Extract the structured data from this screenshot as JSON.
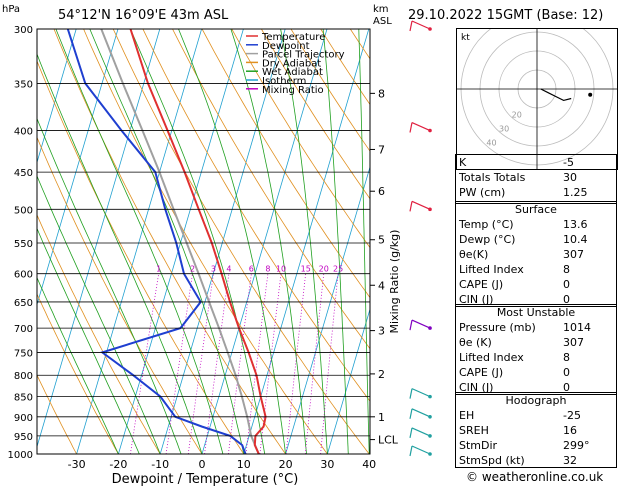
{
  "header": {
    "coords": "54°12'N 16°09'E 43m ASL",
    "datetime": "29.10.2022 15GMT (Base: 12)",
    "y_unit": "hPa",
    "km_label": "km",
    "asl_label": "ASL"
  },
  "chart_data": {
    "type": "skew-t",
    "xlabel": "Dewpoint / Temperature (°C)",
    "ylabel_right": "Mixing Ratio (g/kg)",
    "xlim": [
      -35,
      40
    ],
    "x_ticks": [
      -30,
      -20,
      -10,
      0,
      10,
      20,
      30,
      40
    ],
    "pressure_levels": [
      300,
      350,
      400,
      450,
      500,
      550,
      600,
      650,
      700,
      750,
      800,
      850,
      900,
      950,
      1000
    ],
    "km_ticks": [
      {
        "km": "8",
        "p": 360
      },
      {
        "km": "7",
        "p": 422
      },
      {
        "km": "6",
        "p": 475
      },
      {
        "km": "5",
        "p": 545
      },
      {
        "km": "4",
        "p": 620
      },
      {
        "km": "3",
        "p": 705
      },
      {
        "km": "2",
        "p": 797
      },
      {
        "km": "1",
        "p": 900
      },
      {
        "km": "LCL",
        "p": 960
      }
    ],
    "mixing_ratio_labels": [
      "1",
      "2",
      "3",
      "4",
      "6",
      "8",
      "10",
      "15",
      "20",
      "25"
    ],
    "mixing_ratio_values": [
      1,
      2,
      3,
      4,
      6,
      8,
      10,
      15,
      20,
      25
    ],
    "legend": [
      {
        "name": "Temperature",
        "color": "#e03030"
      },
      {
        "name": "Dewpoint",
        "color": "#1f3fd0"
      },
      {
        "name": "Parcel Trajectory",
        "color": "#a0a0a0"
      },
      {
        "name": "Dry Adiabat",
        "color": "#e09020"
      },
      {
        "name": "Wet Adiabat",
        "color": "#20a020"
      },
      {
        "name": "Isotherm",
        "color": "#20a0d0"
      },
      {
        "name": "Mixing Ratio",
        "color": "#c000c0"
      }
    ],
    "temperature": {
      "p": [
        1000,
        975,
        950,
        925,
        900,
        850,
        800,
        750,
        700,
        650,
        600,
        550,
        500,
        450,
        400,
        350,
        300
      ],
      "t": [
        13.6,
        12.0,
        11.5,
        12.8,
        12.6,
        10.0,
        7.5,
        4.0,
        0.0,
        -4.0,
        -8.0,
        -12.5,
        -18.0,
        -24.0,
        -31.0,
        -39.0,
        -47.0
      ]
    },
    "dewpoint": {
      "p": [
        1000,
        975,
        950,
        925,
        900,
        850,
        800,
        750,
        700,
        650,
        600,
        550,
        500,
        450,
        400,
        350,
        300
      ],
      "t": [
        10.4,
        9.0,
        5.5,
        -2.0,
        -9.0,
        -14.0,
        -22.0,
        -31.0,
        -14.0,
        -11.0,
        -17.0,
        -21.0,
        -26.0,
        -31.0,
        -42.0,
        -54.0,
        -62.0
      ]
    },
    "parcel": {
      "p": [
        1000,
        950,
        900,
        850,
        800,
        750,
        700,
        650,
        600,
        550,
        500,
        450,
        400,
        350,
        300
      ],
      "t": [
        13.6,
        10.5,
        8.2,
        5.5,
        2.5,
        -1.0,
        -4.8,
        -9.0,
        -13.5,
        -18.5,
        -24.0,
        -30.0,
        -37.0,
        -45.0,
        -54.0
      ]
    },
    "wind_barbs_p": [
      300,
      400,
      500,
      700,
      850,
      900,
      950,
      1000
    ],
    "hodograph": {
      "label": "kt",
      "rings": [
        10,
        20,
        30,
        40
      ],
      "ring_labels": [
        "20",
        "30",
        "40"
      ],
      "trace_u": [
        2,
        6,
        10,
        14,
        18
      ],
      "trace_v": [
        0,
        -2,
        -4,
        -6,
        -5
      ]
    }
  },
  "indices": {
    "k": {
      "label": "K",
      "value": "-5"
    },
    "totals": {
      "label": "Totals Totals",
      "value": "30"
    },
    "pw": {
      "label": "PW (cm)",
      "value": "1.25"
    }
  },
  "surface": {
    "title": "Surface",
    "rows": [
      {
        "label": "Temp (°C)",
        "value": "13.6"
      },
      {
        "label": "Dewp (°C)",
        "value": "10.4"
      },
      {
        "label": "θe(K)",
        "value": "307"
      },
      {
        "label": "Lifted Index",
        "value": "8"
      },
      {
        "label": "CAPE (J)",
        "value": "0"
      },
      {
        "label": "CIN (J)",
        "value": "0"
      }
    ]
  },
  "unstable": {
    "title": "Most Unstable",
    "rows": [
      {
        "label": "Pressure (mb)",
        "value": "1014"
      },
      {
        "label": "θe (K)",
        "value": "307"
      },
      {
        "label": "Lifted Index",
        "value": "8"
      },
      {
        "label": "CAPE (J)",
        "value": "0"
      },
      {
        "label": "CIN (J)",
        "value": "0"
      }
    ]
  },
  "hodograph_table": {
    "title": "Hodograph",
    "rows": [
      {
        "label": "EH",
        "value": "-25"
      },
      {
        "label": "SREH",
        "value": "16"
      },
      {
        "label": "StmDir",
        "value": "299°"
      },
      {
        "label": "StmSpd (kt)",
        "value": "32"
      }
    ]
  },
  "footer": "© weatheronline.co.uk"
}
